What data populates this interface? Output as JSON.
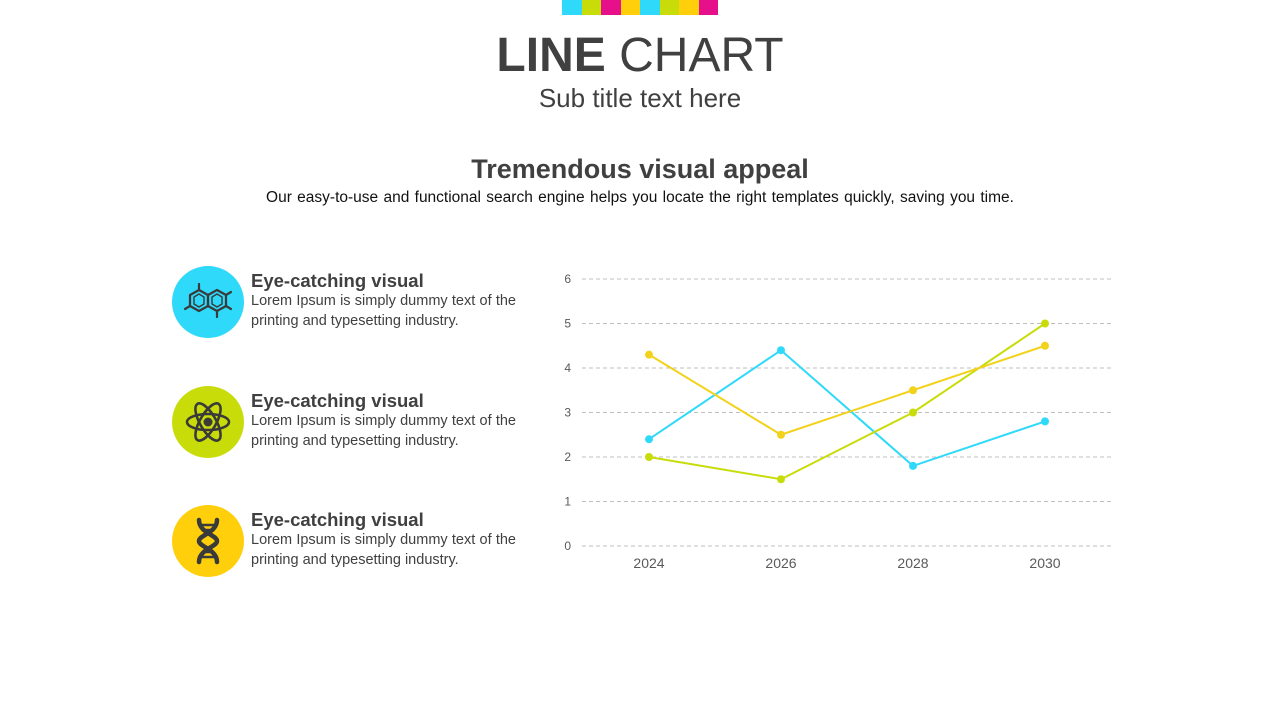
{
  "deco_colors": [
    "#2ed9fa",
    "#c8dc0a",
    "#e6118a",
    "#fecf0a",
    "#2ed9fa",
    "#c8dc0a",
    "#fecf0a",
    "#e6118a"
  ],
  "header": {
    "title_bold": "LINE",
    "title_light": "CHART",
    "subtitle": "Sub title text here"
  },
  "section": {
    "heading": "Tremendous visual appeal",
    "description": "Our easy-to-use and functional search engine helps you locate the right templates quickly, saving you time."
  },
  "features": [
    {
      "title": "Eye-catching visual",
      "text": "Lorem Ipsum is simply dummy text of the printing and typesetting industry.",
      "icon": "molecule-icon",
      "color": "#2ed9fa"
    },
    {
      "title": "Eye-catching visual",
      "text": "Lorem Ipsum is simply dummy text of the printing and typesetting industry.",
      "icon": "atom-icon",
      "color": "#c8dc0a"
    },
    {
      "title": "Eye-catching visual",
      "text": "Lorem Ipsum is simply dummy text of the printing and typesetting industry.",
      "icon": "dna-icon",
      "color": "#fecf0a"
    }
  ],
  "chart_data": {
    "type": "line",
    "categories": [
      "2024",
      "2026",
      "2028",
      "2030"
    ],
    "ylim": [
      0,
      6
    ],
    "yticks": [
      0,
      1,
      2,
      3,
      4,
      5,
      6
    ],
    "grid": true,
    "series": [
      {
        "color": "#2ed9fa",
        "values": [
          2.4,
          4.4,
          1.8,
          2.8
        ]
      },
      {
        "color": "#c8dc0a",
        "values": [
          2.0,
          1.5,
          3.0,
          5.0
        ]
      },
      {
        "color": "#f2d21a",
        "values": [
          4.3,
          2.5,
          3.5,
          4.5
        ]
      }
    ]
  }
}
